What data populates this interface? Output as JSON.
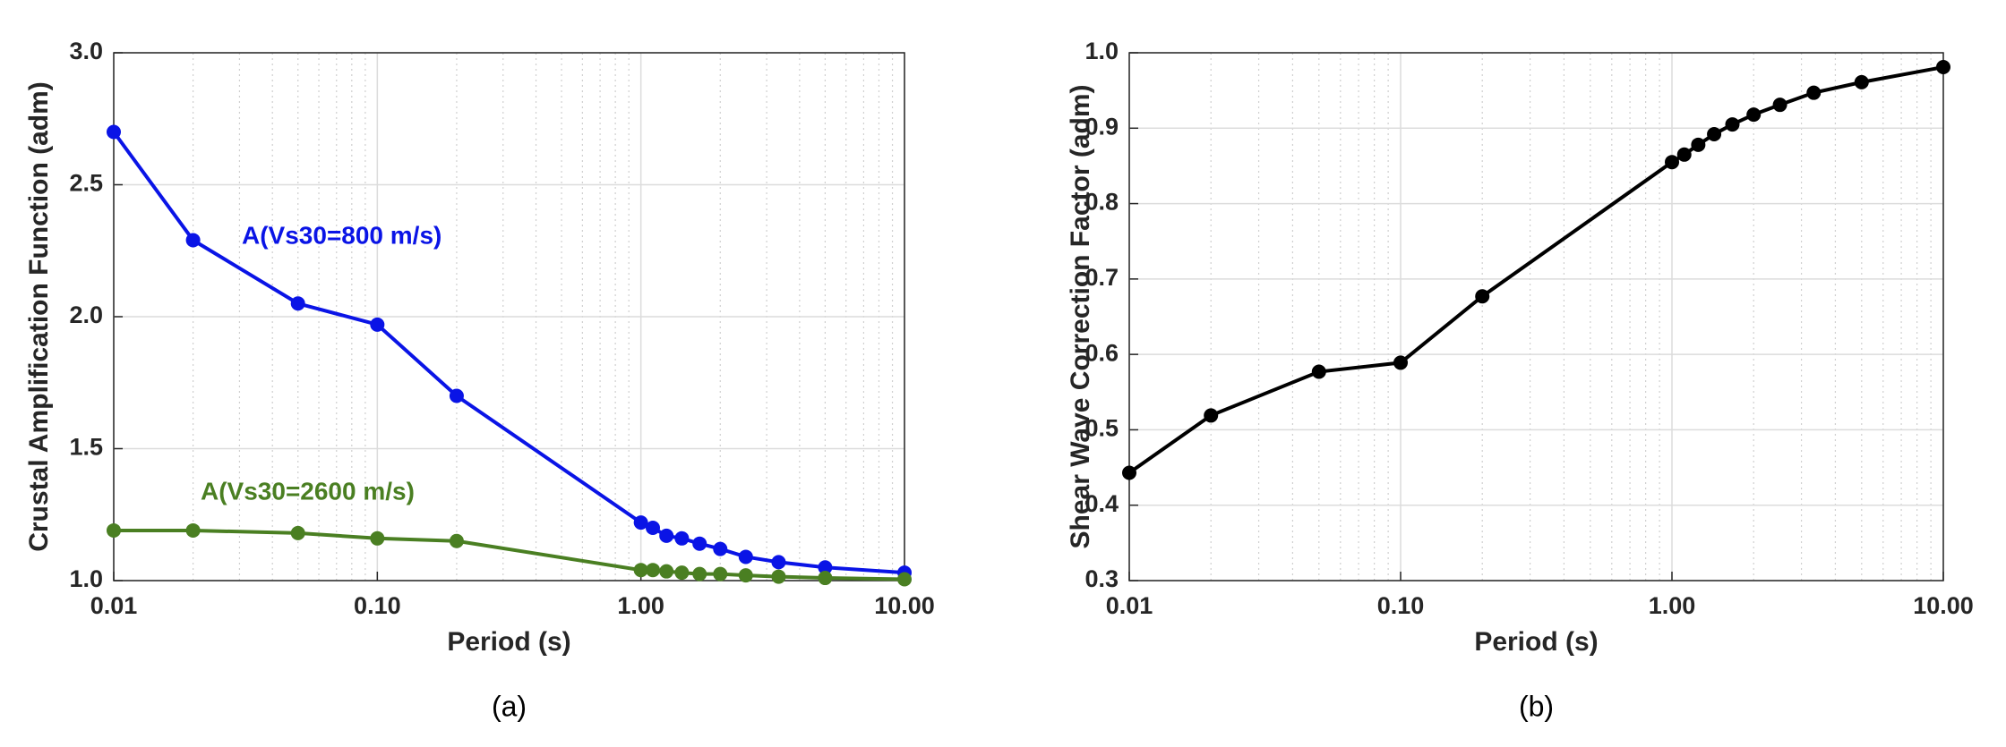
{
  "chart_data": [
    {
      "type": "line",
      "caption": "(a)",
      "xlabel": "Period (s)",
      "ylabel": "Crustal Amplification Function (adm)",
      "x": [
        0.01,
        0.02,
        0.05,
        0.1,
        0.2,
        1.0,
        1.11,
        1.25,
        1.43,
        1.67,
        2.0,
        2.5,
        3.33,
        5.0,
        10.0
      ],
      "series": [
        {
          "name": "A(Vs30=800 m/s)",
          "color": "#0a14e6",
          "values": [
            2.7,
            2.29,
            2.05,
            1.97,
            1.7,
            1.22,
            1.2,
            1.17,
            1.16,
            1.14,
            1.12,
            1.09,
            1.07,
            1.05,
            1.03
          ]
        },
        {
          "name": "A(Vs30=2600 m/s)",
          "color": "#4a7f22",
          "values": [
            1.19,
            1.19,
            1.18,
            1.16,
            1.15,
            1.04,
            1.04,
            1.035,
            1.03,
            1.025,
            1.025,
            1.02,
            1.015,
            1.01,
            1.005
          ]
        }
      ],
      "xlog": true,
      "grid": true,
      "xlim": [
        0.01,
        10
      ],
      "xticks": [
        {
          "value": 0.01,
          "label": "0.01"
        },
        {
          "value": 0.1,
          "label": "0.10"
        },
        {
          "value": 1,
          "label": "1.00"
        },
        {
          "value": 10,
          "label": "10.00"
        }
      ],
      "ylim": [
        1,
        3
      ],
      "yticks": [
        {
          "value": 1,
          "label": "1.0"
        },
        {
          "value": 1.5,
          "label": "1.5"
        },
        {
          "value": 2,
          "label": "2.0"
        },
        {
          "value": 2.5,
          "label": "2.5"
        },
        {
          "value": 3,
          "label": "3.0"
        }
      ]
    },
    {
      "type": "line",
      "caption": "(b)",
      "xlabel": "Period (s)",
      "ylabel": "Shear Wave Correction Factor (adm)",
      "x": [
        0.01,
        0.02,
        0.05,
        0.1,
        0.2,
        1.0,
        1.11,
        1.25,
        1.43,
        1.67,
        2.0,
        2.5,
        3.33,
        5.0,
        10.0
      ],
      "series": [
        {
          "color": "#000000",
          "values": [
            0.443,
            0.519,
            0.577,
            0.589,
            0.677,
            0.855,
            0.865,
            0.878,
            0.892,
            0.905,
            0.918,
            0.931,
            0.947,
            0.961,
            0.981
          ]
        }
      ],
      "xlog": true,
      "grid": true,
      "xlim": [
        0.01,
        10
      ],
      "xticks": [
        {
          "value": 0.01,
          "label": "0.01"
        },
        {
          "value": 0.1,
          "label": "0.10"
        },
        {
          "value": 1,
          "label": "1.00"
        },
        {
          "value": 10,
          "label": "10.00"
        }
      ],
      "ylim": [
        0.3,
        1
      ],
      "yticks": [
        {
          "value": 0.3,
          "label": "0.3"
        },
        {
          "value": 0.4,
          "label": "0.4"
        },
        {
          "value": 0.5,
          "label": "0.5"
        },
        {
          "value": 0.6,
          "label": "0.6"
        },
        {
          "value": 0.7,
          "label": "0.7"
        },
        {
          "value": 0.8,
          "label": "0.8"
        },
        {
          "value": 0.9,
          "label": "0.9"
        },
        {
          "value": 1,
          "label": "1.0"
        }
      ]
    }
  ]
}
